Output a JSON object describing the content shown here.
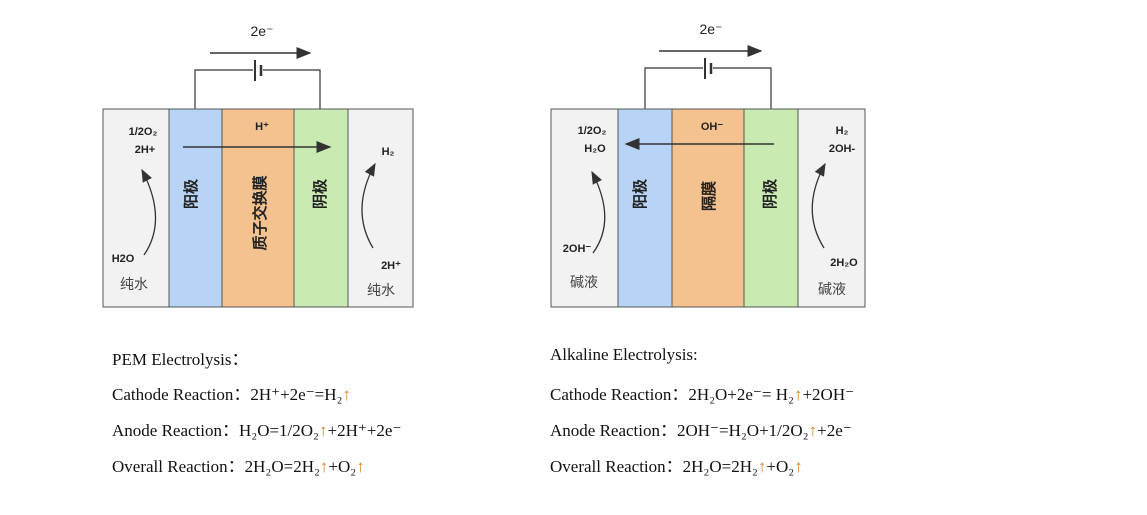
{
  "pem": {
    "electron_label": "2e⁻",
    "membrane_ion": "H⁺",
    "anode": "阳极",
    "membrane": "质子交换膜",
    "cathode": "阴极",
    "left_top1": "1/2O₂",
    "left_top2": "2H+",
    "left_bottom": "H2O",
    "left_medium": "纯水",
    "right_top": "H₂",
    "right_bottom": "2H⁺",
    "right_medium": "纯水",
    "ion_direction": "right"
  },
  "alkaline": {
    "electron_label": "2e⁻",
    "membrane_ion": "OH⁻",
    "anode": "阳极",
    "membrane": "隔膜",
    "cathode": "阴极",
    "left_top1": "1/2O₂",
    "left_top2": "H₂O",
    "left_bottom": "2OH⁻",
    "left_medium": "碱液",
    "right_top1": "H₂",
    "right_top2": "2OH-",
    "right_bottom": "2H₂O",
    "right_medium": "碱液",
    "ion_direction": "left"
  },
  "colors": {
    "anode": "#b7d4f7",
    "membrane": "#f4c28f",
    "cathode": "#c9eab1",
    "chamber": "#f2f2f2",
    "arrow_up": "#d9822b"
  },
  "equations": {
    "pem": [
      "PEM Electrolysis：",
      "Cathode Reaction：2H⁺+2e⁻=H₂↑",
      "Anode Reaction：H₂O=1/2O₂↑+2H⁺+2e⁻",
      "Overall Reaction：2H₂O=2H₂↑+O₂↑"
    ],
    "alkaline": [
      "Alkaline Electrolysis:",
      "Cathode Reaction：2H₂O+2e⁻= H₂↑+2OH⁻",
      "Anode Reaction：2OH⁻=H₂O+1/2O₂↑+2e⁻",
      "Overall Reaction：2H₂O=2H₂↑+O₂↑"
    ]
  }
}
